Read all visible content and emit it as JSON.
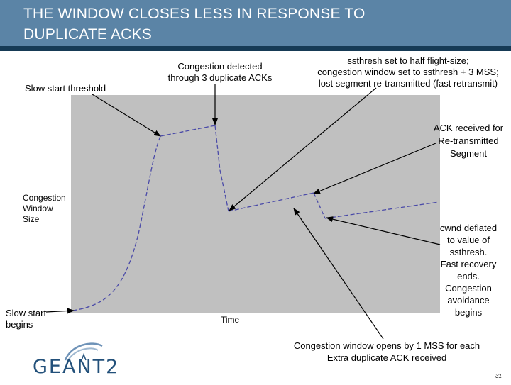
{
  "header": {
    "title_line1": "THE WINDOW CLOSES LESS IN RESPONSE TO",
    "title_line2": "DUPLICATE ACKS"
  },
  "labels": {
    "slow_start_threshold": "Slow start threshold",
    "congestion_detected_1": "Congestion detected",
    "congestion_detected_2": "through 3 duplicate ACKs",
    "ssthresh_1": "ssthresh set to half flight-size;",
    "ssthresh_2": "congestion window set to ssthresh + 3 MSS;",
    "ssthresh_3": "lost segment re-transmitted (fast retransmit)",
    "ack_1": "ACK received for",
    "ack_2": "Re-transmitted",
    "ack_3": "Segment",
    "cwnd_size_1": "Congestion",
    "cwnd_size_2": "Window",
    "cwnd_size_3": "Size",
    "deflated_1": "cwnd deflated",
    "deflated_2": "to value of",
    "deflated_3": "ssthresh.",
    "deflated_4": "Fast recovery",
    "deflated_5": "ends.",
    "deflated_6": "Congestion",
    "deflated_7": "avoidance",
    "deflated_8": "begins",
    "slow_start_begins_1": "Slow start",
    "slow_start_begins_2": "begins",
    "time_axis": "Time",
    "opens_1": "Congestion window opens by 1 MSS for each",
    "opens_2": "Extra duplicate ACK received"
  },
  "logo": {
    "text": "GEANT2"
  },
  "page_number": "31",
  "colors": {
    "header": "#5b84a6",
    "header_strip": "#163a55",
    "plot_background": "#c0c0c0",
    "cwnd_curve": "#4a4aa8"
  }
}
